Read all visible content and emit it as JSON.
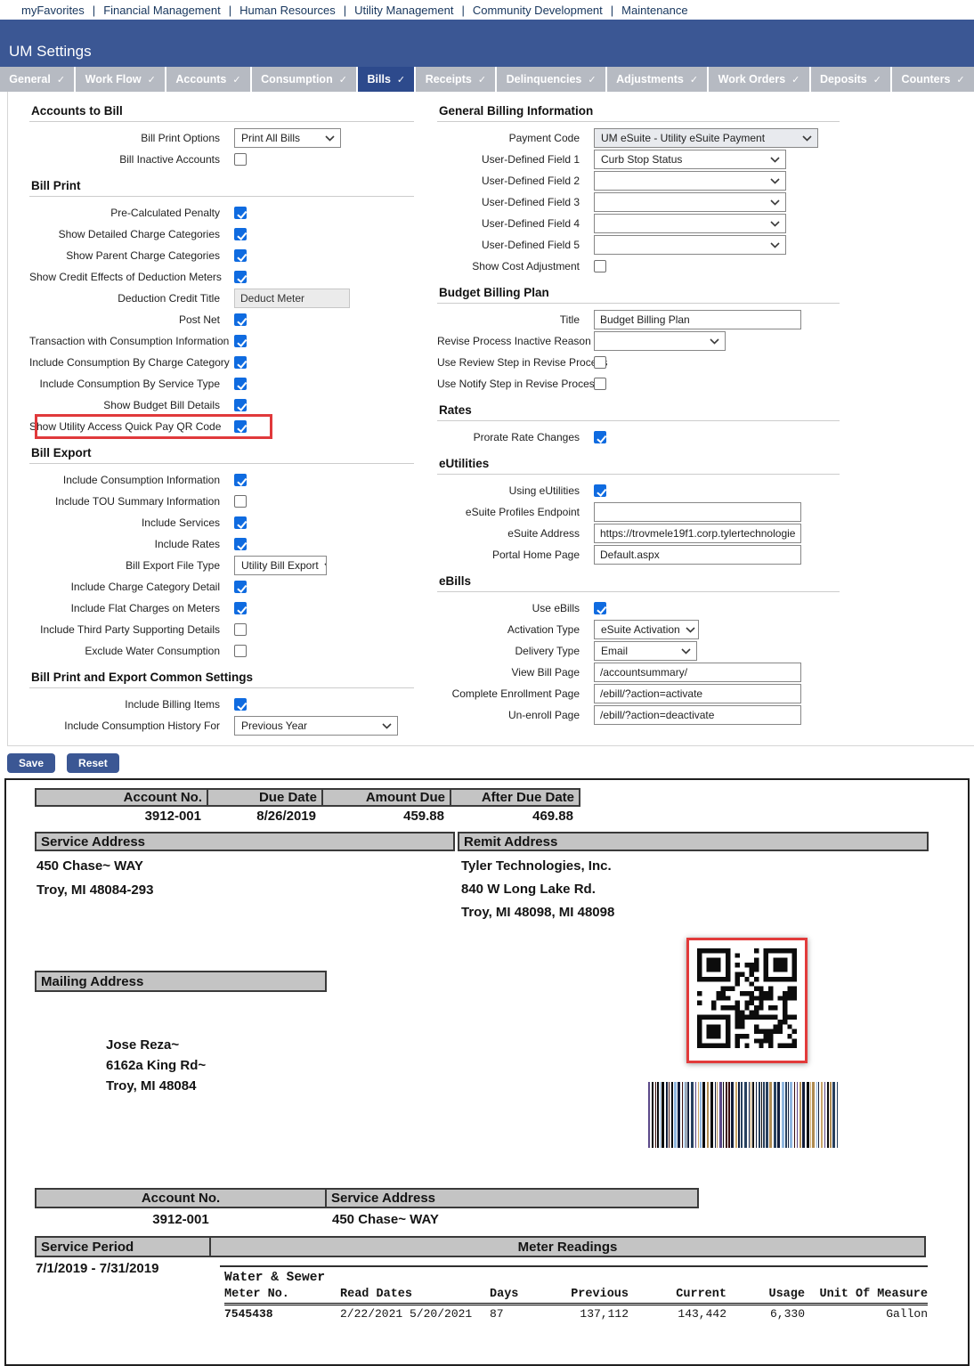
{
  "nav": {
    "items": [
      "myFavorites",
      "Financial Management",
      "Human Resources",
      "Utility Management",
      "Community Development",
      "Maintenance"
    ]
  },
  "header": {
    "title": "UM Settings"
  },
  "tabs": [
    {
      "label": "General",
      "active": false
    },
    {
      "label": "Work Flow",
      "active": false
    },
    {
      "label": "Accounts",
      "active": false
    },
    {
      "label": "Consumption",
      "active": false
    },
    {
      "label": "Bills",
      "active": true
    },
    {
      "label": "Receipts",
      "active": false
    },
    {
      "label": "Delinquencies",
      "active": false
    },
    {
      "label": "Adjustments",
      "active": false
    },
    {
      "label": "Work Orders",
      "active": false
    },
    {
      "label": "Deposits",
      "active": false
    },
    {
      "label": "Counters",
      "active": false
    }
  ],
  "colors": {
    "header_blue": "#3b5794",
    "active_tab": "#2d4a8c",
    "tab_gray": "#b6bac2",
    "checkbox_blue": "#0f6be0",
    "highlight_red": "#e0393b",
    "bill_header_gray": "#c4c4c4"
  },
  "form": {
    "left": {
      "sections": [
        {
          "title": "Accounts to Bill",
          "rows": [
            {
              "label": "Bill Print Options",
              "control": "select",
              "value": "Print All Bills"
            },
            {
              "label": "Bill Inactive Accounts",
              "control": "checkbox",
              "checked": false
            }
          ]
        },
        {
          "title": "Bill Print",
          "rows": [
            {
              "label": "Pre-Calculated Penalty",
              "control": "checkbox",
              "checked": true
            },
            {
              "label": "Show Detailed Charge Categories",
              "control": "checkbox",
              "checked": true
            },
            {
              "label": "Show Parent Charge Categories",
              "control": "checkbox",
              "checked": true
            },
            {
              "label": "Show Credit Effects of Deduction Meters",
              "control": "checkbox",
              "checked": true
            },
            {
              "label": "Deduction Credit Title",
              "control": "text",
              "value": "Deduct Meter"
            },
            {
              "label": "Post Net",
              "control": "checkbox",
              "checked": true
            },
            {
              "label": "Transaction with Consumption Information",
              "control": "checkbox",
              "checked": true
            },
            {
              "label": "Include Consumption By Charge Category",
              "control": "checkbox",
              "checked": true
            },
            {
              "label": "Include Consumption By Service Type",
              "control": "checkbox",
              "checked": true
            },
            {
              "label": "Show Budget Bill Details",
              "control": "checkbox",
              "checked": true
            },
            {
              "label": "Show Utility Access Quick Pay QR Code",
              "control": "checkbox",
              "checked": true,
              "highlighted": true
            }
          ]
        },
        {
          "title": "Bill Export",
          "rows": [
            {
              "label": "Include Consumption Information",
              "control": "checkbox",
              "checked": true
            },
            {
              "label": "Include TOU Summary Information",
              "control": "checkbox",
              "checked": false
            },
            {
              "label": "Include Services",
              "control": "checkbox",
              "checked": true
            },
            {
              "label": "Include Rates",
              "control": "checkbox",
              "checked": true
            },
            {
              "label": "Bill Export File Type",
              "control": "select",
              "value": "Utility Bill Export"
            },
            {
              "label": "Include Charge Category Detail",
              "control": "checkbox",
              "checked": true
            },
            {
              "label": "Include Flat Charges on Meters",
              "control": "checkbox",
              "checked": true
            },
            {
              "label": "Include Third Party Supporting Details",
              "control": "checkbox",
              "checked": false
            },
            {
              "label": "Exclude Water Consumption",
              "control": "checkbox",
              "checked": false
            }
          ]
        },
        {
          "title": "Bill Print and Export Common Settings",
          "rows": [
            {
              "label": "Include Billing Items",
              "control": "checkbox",
              "checked": true
            },
            {
              "label": "Include Consumption History For",
              "control": "select",
              "value": "Previous Year"
            }
          ]
        }
      ]
    },
    "right": {
      "sections": [
        {
          "title": "General Billing Information",
          "rows": [
            {
              "label": "Payment Code",
              "control": "select",
              "value": "UM eSuite - Utility eSuite Payment"
            },
            {
              "label": "User-Defined Field 1",
              "control": "select",
              "value": "Curb Stop Status"
            },
            {
              "label": "User-Defined Field 2",
              "control": "select",
              "value": ""
            },
            {
              "label": "User-Defined Field 3",
              "control": "select",
              "value": ""
            },
            {
              "label": "User-Defined Field 4",
              "control": "select",
              "value": ""
            },
            {
              "label": "User-Defined Field 5",
              "control": "select",
              "value": ""
            },
            {
              "label": "Show Cost Adjustment",
              "control": "checkbox",
              "checked": false
            }
          ]
        },
        {
          "title": "Budget Billing Plan",
          "rows": [
            {
              "label": "Title",
              "control": "text",
              "value": "Budget Billing Plan"
            },
            {
              "label": "Revise Process Inactive Reason",
              "control": "select",
              "value": ""
            },
            {
              "label": "Use Review Step in Revise Process",
              "control": "checkbox",
              "checked": false
            },
            {
              "label": "Use Notify Step in Revise Process",
              "control": "checkbox",
              "checked": false
            }
          ]
        },
        {
          "title": "Rates",
          "rows": [
            {
              "label": "Prorate Rate Changes",
              "control": "checkbox",
              "checked": true
            }
          ]
        },
        {
          "title": "eUtilities",
          "rows": [
            {
              "label": "Using eUtilities",
              "control": "checkbox",
              "checked": true
            },
            {
              "label": "eSuite Profiles Endpoint",
              "control": "text",
              "value": ""
            },
            {
              "label": "eSuite Address",
              "control": "text",
              "value": "https://trovmele19f1.corp.tylertechnologie"
            },
            {
              "label": "Portal Home Page",
              "control": "text",
              "value": "Default.aspx"
            }
          ]
        },
        {
          "title": "eBills",
          "rows": [
            {
              "label": "Use eBills",
              "control": "checkbox",
              "checked": true
            },
            {
              "label": "Activation Type",
              "control": "select",
              "value": "eSuite Activation"
            },
            {
              "label": "Delivery Type",
              "control": "select",
              "value": "Email"
            },
            {
              "label": "View Bill Page",
              "control": "text",
              "value": "/accountsummary/"
            },
            {
              "label": "Complete Enrollment Page",
              "control": "text",
              "value": "/ebill/?action=activate"
            },
            {
              "label": "Un-enroll Page",
              "control": "text",
              "value": "/ebill/?action=deactivate"
            }
          ]
        }
      ]
    }
  },
  "actions": {
    "save": "Save",
    "reset": "Reset"
  },
  "bill": {
    "summary": {
      "headers": [
        "Account No.",
        "Due Date",
        "Amount Due",
        "After Due Date"
      ],
      "values": [
        "3912-001",
        "8/26/2019",
        "459.88",
        "469.88"
      ]
    },
    "service_address": {
      "title": "Service Address",
      "lines": [
        "450 Chase~ WAY",
        "Troy, MI 48084-293"
      ]
    },
    "remit_address": {
      "title": "Remit Address",
      "lines": [
        "Tyler Technologies, Inc.",
        "840 W Long Lake Rd.",
        "Troy, MI 48098, MI 48098"
      ]
    },
    "mailing_address": {
      "title": "Mailing Address",
      "lines": [
        "Jose Reza~",
        "6162a King Rd~",
        "Troy, MI 48084"
      ]
    },
    "qr_highlighted": true,
    "account_table": {
      "headers": [
        "Account No.",
        "Service Address"
      ],
      "values": [
        "3912-001",
        "450 Chase~ WAY"
      ]
    },
    "period_table": {
      "headers": [
        "Service Period",
        "Meter Readings"
      ],
      "period": "7/1/2019 - 7/31/2019"
    },
    "meter_group": "Water & Sewer",
    "meter_table": {
      "headers": [
        "Meter No.",
        "Read Dates",
        "Days",
        "Previous",
        "Current",
        "Usage",
        "Unit Of Measure"
      ],
      "row": [
        "7545438",
        "2/22/2021 5/20/2021",
        "87",
        "137,112",
        "143,442",
        "6,330",
        "Gallon"
      ]
    }
  }
}
